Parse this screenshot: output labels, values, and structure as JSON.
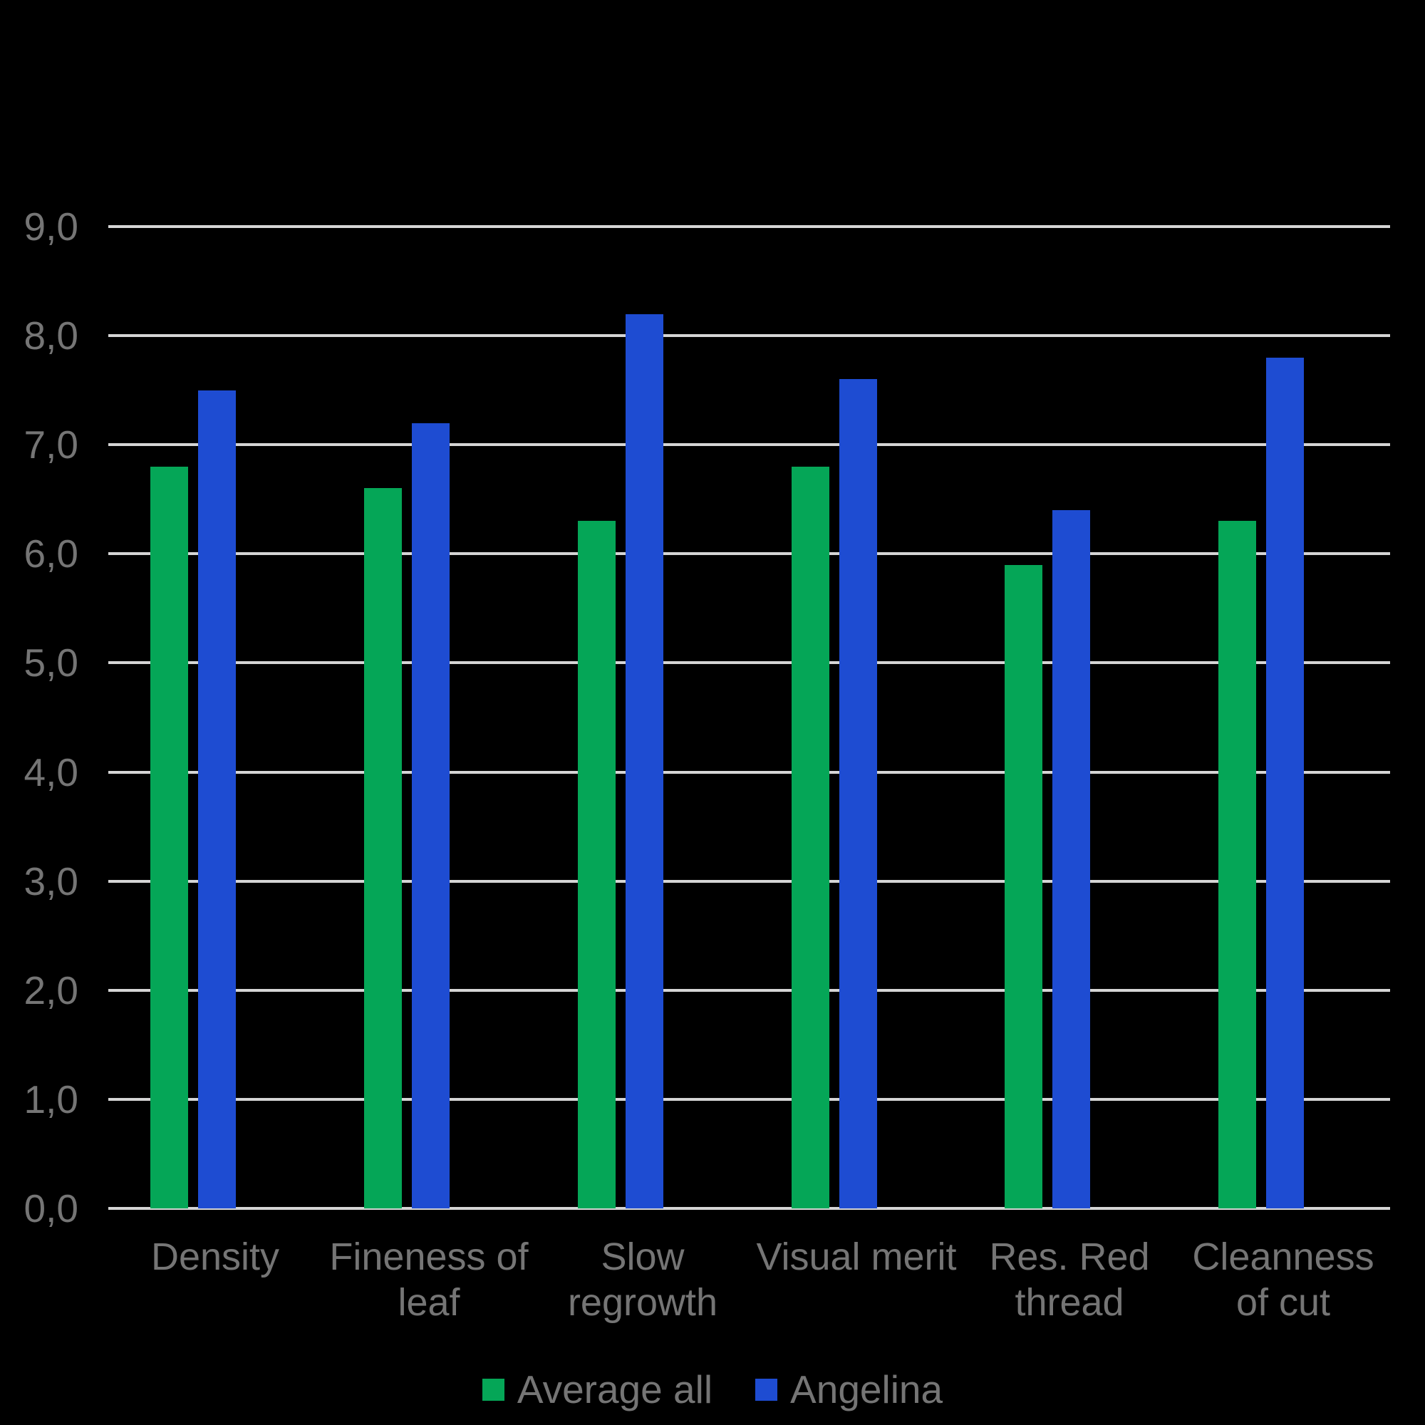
{
  "chart_data": {
    "type": "bar",
    "title": "",
    "categories": [
      "Density",
      "Fineness of leaf",
      "Slow regrowth",
      "Visual merit",
      "Res. Red thread",
      "Cleanness of cut"
    ],
    "category_label_lines": [
      [
        "Density"
      ],
      [
        "Fineness of",
        "leaf"
      ],
      [
        "Slow",
        "regrowth"
      ],
      [
        "Visual merit"
      ],
      [
        "Res. Red",
        "thread"
      ],
      [
        "Cleanness",
        "of cut"
      ]
    ],
    "series": [
      {
        "name": "Average all",
        "color": "#05A657",
        "values": [
          6.8,
          6.6,
          6.3,
          6.8,
          5.9,
          6.3
        ]
      },
      {
        "name": "Angelina",
        "color": "#1E4CD2",
        "values": [
          7.5,
          7.2,
          8.2,
          7.6,
          6.4,
          7.8
        ]
      }
    ],
    "ylim": [
      0,
      9
    ],
    "y_tick_step": 1,
    "y_tick_labels": [
      "0,0",
      "1,0",
      "2,0",
      "3,0",
      "4,0",
      "5,0",
      "6,0",
      "7,0",
      "8,0",
      "9,0"
    ],
    "decimal_separator": ",",
    "grid": true,
    "legend_position": "bottom",
    "background_color": "#000000",
    "gridline_color": "#D5D5D5",
    "text_color": "#757575"
  }
}
